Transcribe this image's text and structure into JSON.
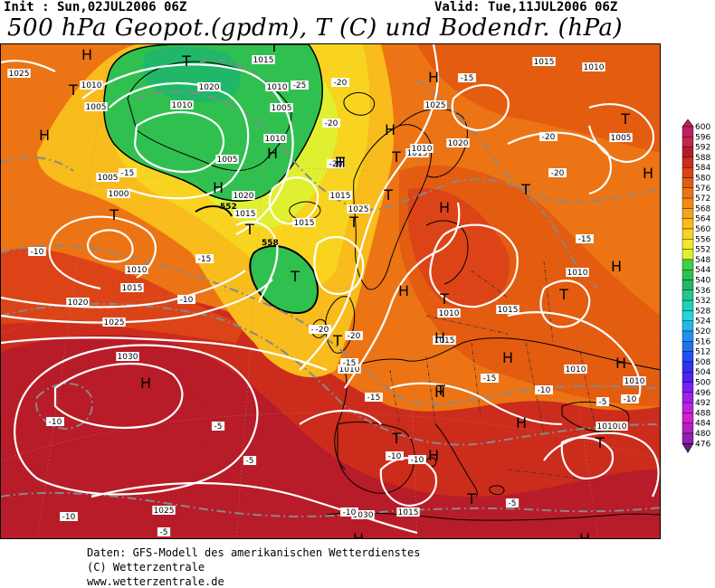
{
  "header": {
    "init": "Init : Sun,02JUL2006 06Z",
    "valid": "Valid: Tue,11JUL2006 06Z",
    "title": "500 hPa Geopot.(gpdm), T (C) und Bodendr. (hPa)"
  },
  "footer": {
    "line1": "Daten: GFS-Modell des amerikanischen Wetterdienstes",
    "line2": "(C) Wetterzentrale",
    "line3": "www.wetterzentrale.de"
  },
  "legend": {
    "levels": [
      "600",
      "596",
      "592",
      "588",
      "584",
      "580",
      "576",
      "572",
      "568",
      "564",
      "560",
      "556",
      "552",
      "548",
      "544",
      "540",
      "536",
      "532",
      "528",
      "524",
      "520",
      "516",
      "512",
      "508",
      "504",
      "500",
      "496",
      "492",
      "488",
      "484",
      "480",
      "476"
    ],
    "colors": [
      "#c02060",
      "#c02848",
      "#b81c28",
      "#cc2c1c",
      "#dc4418",
      "#e45c10",
      "#ec7414",
      "#f08c14",
      "#f4a418",
      "#f8bc1c",
      "#f8d420",
      "#f4e828",
      "#e0f030",
      "#40d040",
      "#30c050",
      "#20b868",
      "#20c890",
      "#20d0b8",
      "#20d8d8",
      "#20b8e8",
      "#2090f0",
      "#2070f0",
      "#2050f0",
      "#3030f0",
      "#5020f0",
      "#7820f0",
      "#a020e8",
      "#c020e0",
      "#d020d0",
      "#b020c0",
      "#9020b0",
      "#701890"
    ]
  },
  "map": {
    "pressure_labels": [
      "1010",
      "1005",
      "1000",
      "1005",
      "1010",
      "1015",
      "1020",
      "1025",
      "1030",
      "1025",
      "1020",
      "1015",
      "1010",
      "1005",
      "1010",
      "1015",
      "1020",
      "1025",
      "1015",
      "1010",
      "1015",
      "1010",
      "1010",
      "1015",
      "1010",
      "1015",
      "1010",
      "1010",
      "1005",
      "1010",
      "1010",
      "1025",
      "1015",
      "1020",
      "1025",
      "1030",
      "1010",
      "1005",
      "1015",
      "1015",
      "1010"
    ],
    "temp_labels": [
      "-15",
      "-10",
      "-15",
      "-10",
      "-10",
      "-5",
      "-5",
      "-10",
      "-15",
      "-20",
      "-20",
      "-20",
      "-15",
      "-20",
      "-20",
      "-15",
      "-15",
      "-10",
      "-10",
      "-10",
      "-5",
      "-10",
      "-5",
      "-10",
      "-5",
      "-20",
      "-25",
      "-20",
      "-15",
      "-20"
    ],
    "geopot_labels": [
      "552",
      "558"
    ],
    "highs": [
      "H",
      "H",
      "H",
      "H",
      "H",
      "H",
      "H",
      "H",
      "H",
      "H",
      "H",
      "H",
      "H",
      "H",
      "H",
      "H",
      "H",
      "H",
      "H",
      "H"
    ],
    "lows": [
      "T",
      "T",
      "T",
      "T",
      "T",
      "T",
      "T",
      "T",
      "T",
      "T",
      "T",
      "T",
      "T",
      "T",
      "T",
      "T",
      "T",
      "T",
      "T"
    ]
  }
}
